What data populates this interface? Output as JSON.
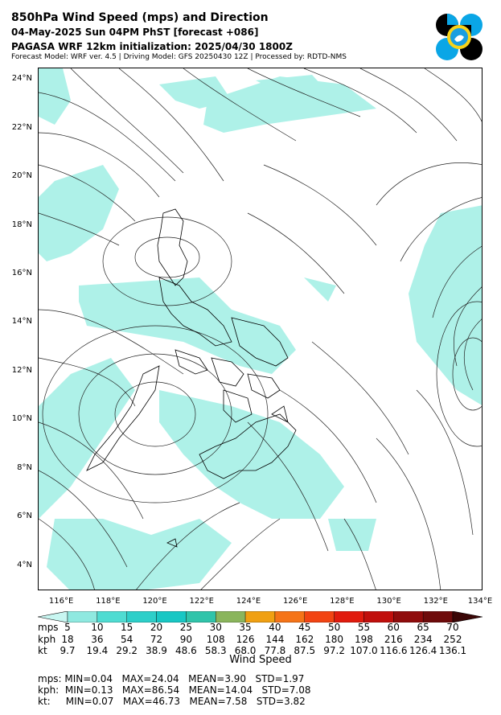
{
  "header": {
    "title": "850hPa Wind Speed (mps) and Direction",
    "forecast_line": "04-May-2025 Sun 04PM PhST [forecast +086]",
    "init_line": "PAGASA WRF 12km initialization: 2025/04/30 1800Z",
    "model_line": "Forecast Model: WRF ver. 4.5 | Driving Model: GFS 20250430 12Z | Processed by: RDTD-NMS"
  },
  "logo": {
    "icon": "pagasa-logo-icon"
  },
  "map": {
    "lat_labels": [
      "24°N",
      "22°N",
      "20°N",
      "18°N",
      "16°N",
      "14°N",
      "12°N",
      "10°N",
      "8°N",
      "6°N",
      "4°N"
    ],
    "lon_labels": [
      "116°E",
      "118°E",
      "120°E",
      "122°E",
      "124°E",
      "126°E",
      "128°E",
      "130°E",
      "132°E",
      "134°E"
    ],
    "lat_range": [
      3,
      24.5
    ],
    "lon_range": [
      115,
      134
    ],
    "shading_color": "#aef1e8",
    "shading_class": "5-10 mps"
  },
  "colorbar": {
    "title": "Wind Speed",
    "colors": [
      "#c8f6f1",
      "#8fe9e0",
      "#4fdcd2",
      "#2dcfc9",
      "#18c7c4",
      "#30c4aa",
      "#8ab55c",
      "#f0a012",
      "#f57418",
      "#f24413",
      "#e11b0e",
      "#c10f0c",
      "#900c0c",
      "#6e0b0b",
      "#3a0606"
    ],
    "mps_label": "mps",
    "kph_label": "kph",
    "kt_label": "kt",
    "mps": [
      "5",
      "10",
      "15",
      "20",
      "25",
      "30",
      "35",
      "40",
      "45",
      "50",
      "55",
      "60",
      "65",
      "70"
    ],
    "kph": [
      "18",
      "36",
      "54",
      "72",
      "90",
      "108",
      "126",
      "144",
      "162",
      "180",
      "198",
      "216",
      "234",
      "252"
    ],
    "kt": [
      "9.7",
      "19.4",
      "29.2",
      "38.9",
      "48.6",
      "58.3",
      "68.0",
      "77.8",
      "87.5",
      "97.2",
      "107.0",
      "116.6",
      "126.4",
      "136.1"
    ]
  },
  "stats": {
    "mps": "mps: MIN=0.04   MAX=24.04   MEAN=3.90   STD=1.97",
    "kph": "kph:  MIN=0.13   MAX=86.54   MEAN=14.04   STD=7.08",
    "kt": "kt:     MIN=0.07   MAX=46.73   MEAN=7.58   STD=3.82"
  }
}
